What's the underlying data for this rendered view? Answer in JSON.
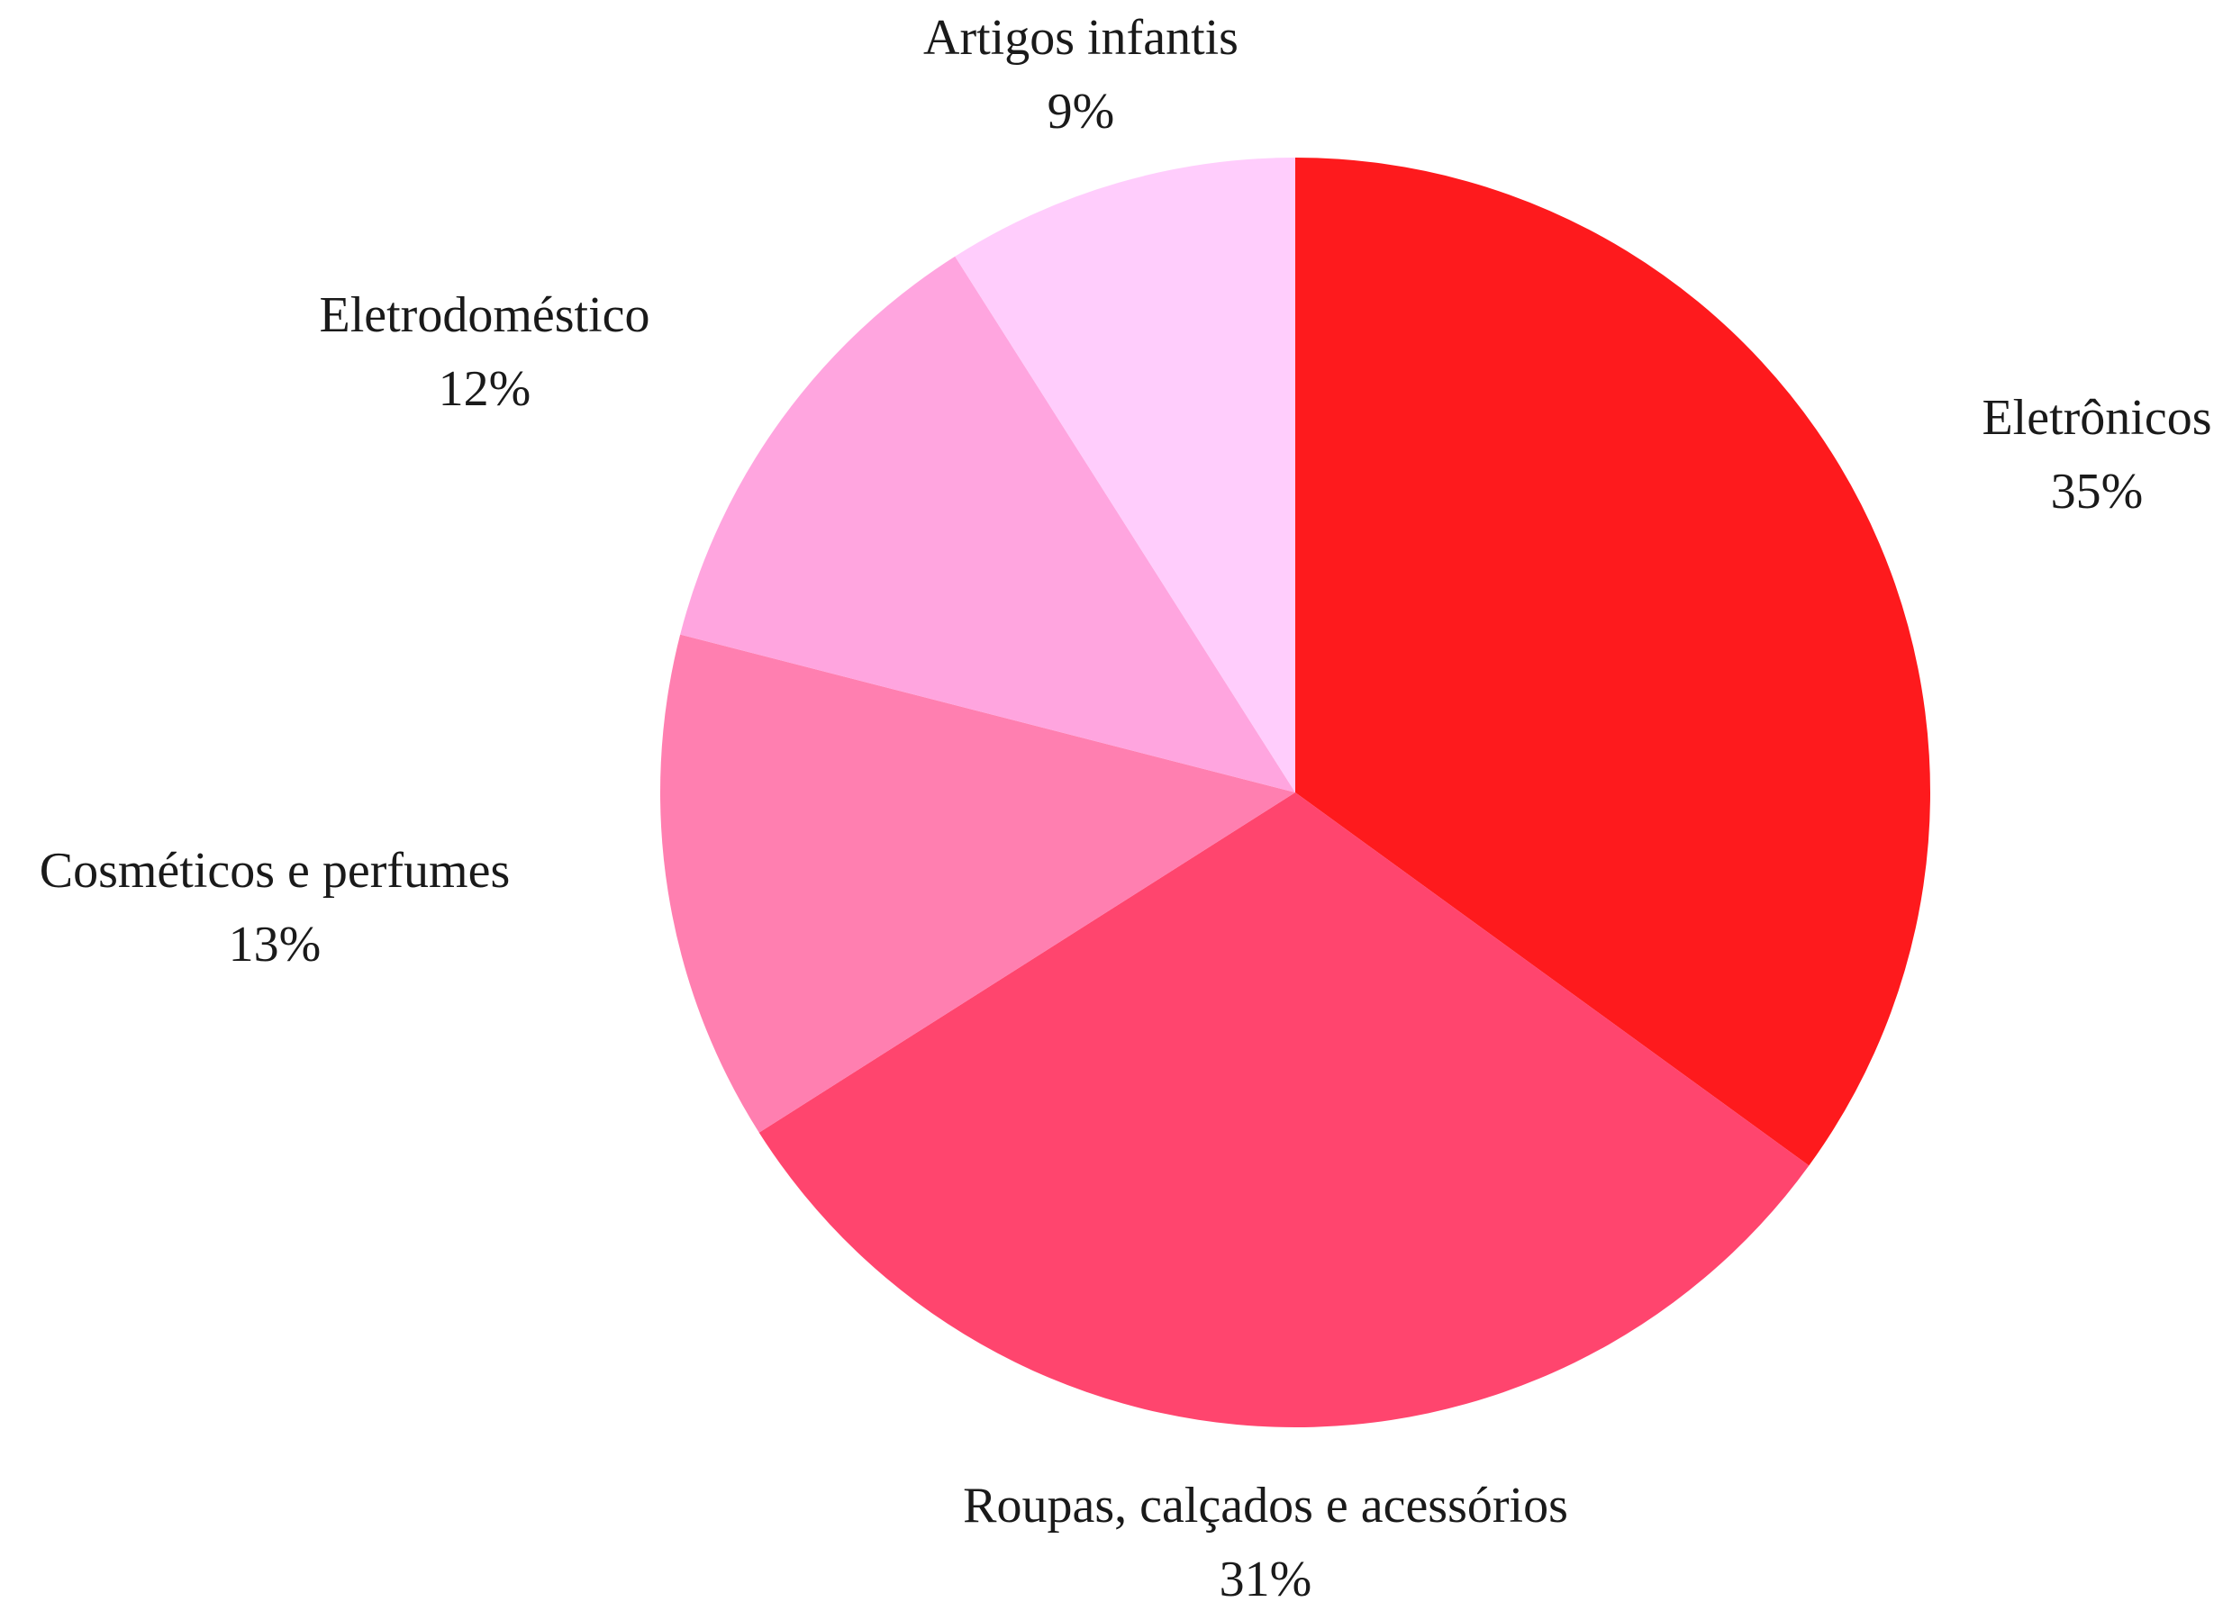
{
  "chart_data": {
    "type": "pie",
    "title": "",
    "start": "12 o'clock",
    "direction": "clockwise",
    "slices": [
      {
        "label": "Eletrônicos",
        "value": 35,
        "value_label": "35%",
        "color": "#fe1a1d"
      },
      {
        "label": "Roupas, calçados e acessórios",
        "value": 31,
        "value_label": "31%",
        "color": "#ff456e"
      },
      {
        "label": "Cosméticos e perfumes",
        "value": 13,
        "value_label": "13%",
        "color": "#ff7fb0"
      },
      {
        "label": "Eletrodoméstico",
        "value": 12,
        "value_label": "12%",
        "color": "#ffa5df"
      },
      {
        "label": "Artigos infantis",
        "value": 9,
        "value_label": "9%",
        "color": "#ffcdfc"
      }
    ]
  }
}
